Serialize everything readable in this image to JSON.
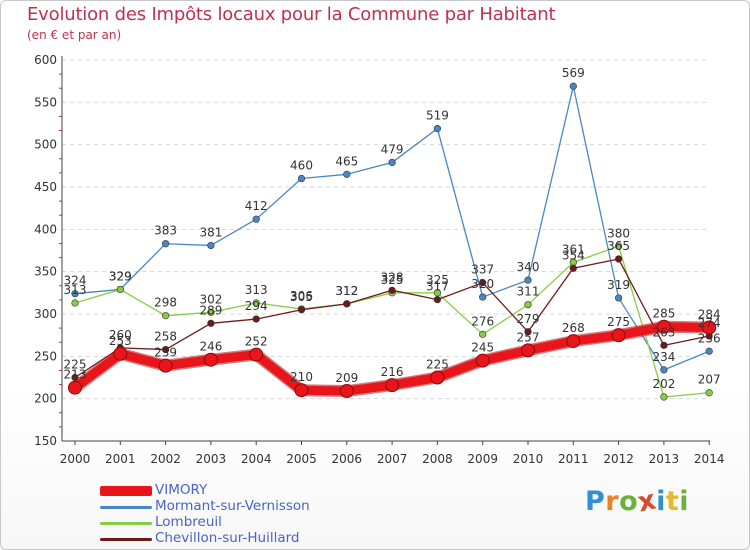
{
  "title": "Evolution des Impôts locaux pour la Commune par Habitant",
  "subtitle": "(en € et par an)",
  "brand": {
    "letters": [
      "P",
      "r",
      "o",
      "x",
      "i",
      "t",
      "i"
    ],
    "colors": [
      "#2f8fd8",
      "#e8812a",
      "#6ab23a",
      "#d84a2a",
      "#2f8fd8",
      "#e8b82a",
      "#6ab23a"
    ]
  },
  "chart_data": {
    "type": "line",
    "title": "Evolution des Impôts locaux pour la Commune par Habitant",
    "subtitle": "(en € et par an)",
    "xlabel": "",
    "ylabel": "",
    "x": [
      "2000",
      "2001",
      "2002",
      "2003",
      "2004",
      "2005",
      "2006",
      "2007",
      "2008",
      "2009",
      "2010",
      "2011",
      "2012",
      "2013",
      "2014"
    ],
    "ylim": [
      150,
      600
    ],
    "yticks": [
      "150",
      "200",
      "250",
      "300",
      "350",
      "400",
      "450",
      "500",
      "550",
      "600"
    ],
    "grid": "horizontal dashed",
    "series": [
      {
        "name": "VIMORY",
        "color": "#e8161a",
        "values": [
          213,
          253,
          239,
          246,
          252,
          210,
          209,
          216,
          225,
          245,
          257,
          268,
          275,
          285,
          284
        ],
        "labels": [
          "213",
          "253",
          "239",
          "246",
          "252",
          "210",
          "209",
          "216",
          "225",
          "245",
          "257",
          "268",
          "275",
          "285",
          "284"
        ]
      },
      {
        "name": "Mormant-sur-Vernisson",
        "color": "#4a86c6",
        "values": [
          324,
          329,
          383,
          381,
          412,
          460,
          465,
          479,
          519,
          320,
          340,
          569,
          319,
          234,
          256
        ],
        "labels": [
          "324",
          "329",
          "383",
          "381",
          "412",
          "460",
          "465",
          "479",
          "519",
          "320",
          "340",
          "569",
          "319",
          "234",
          "256"
        ]
      },
      {
        "name": "Lombreuil",
        "color": "#88cc44",
        "values": [
          313,
          329,
          298,
          302,
          313,
          306,
          312,
          325,
          325,
          276,
          311,
          361,
          380,
          202,
          207
        ],
        "labels": [
          "313",
          "329",
          "298",
          "302",
          "313",
          "306",
          "312",
          "325",
          "325",
          "276",
          "311",
          "361",
          "380",
          "202",
          "207"
        ]
      },
      {
        "name": "Chevillon-sur-Huillard",
        "color": "#6e1a1a",
        "values": [
          225,
          260,
          258,
          289,
          294,
          305,
          312,
          328,
          317,
          337,
          279,
          354,
          365,
          263,
          274
        ],
        "labels": [
          "225",
          "260",
          "258",
          "289",
          "294",
          "305",
          "312",
          "328",
          "317",
          "337",
          "279",
          "354",
          "365",
          "263",
          "274"
        ]
      }
    ]
  }
}
